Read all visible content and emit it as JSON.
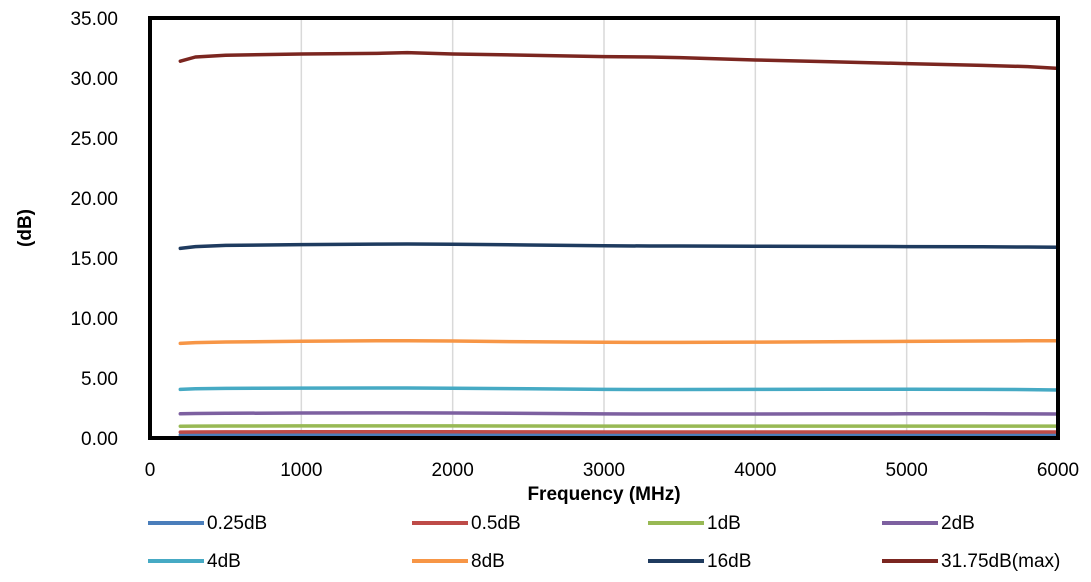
{
  "chart_data": {
    "type": "line",
    "title": "",
    "xlabel": "Frequency (MHz)",
    "ylabel": "(dB)",
    "xlim": [
      0,
      6000
    ],
    "ylim": [
      0,
      35
    ],
    "xticks": [
      0,
      1000,
      2000,
      3000,
      4000,
      5000,
      6000
    ],
    "xtick_labels": [
      "0",
      "1000",
      "2000",
      "3000",
      "4000",
      "5000",
      "6000"
    ],
    "yticks": [
      0,
      5,
      10,
      15,
      20,
      25,
      30,
      35
    ],
    "ytick_labels": [
      "0.00",
      "5.00",
      "10.00",
      "15.00",
      "20.00",
      "25.00",
      "30.00",
      "35.00"
    ],
    "grid": "vertical",
    "legend_position": "bottom",
    "x": [
      200,
      300,
      500,
      1000,
      1500,
      1700,
      2000,
      2500,
      3000,
      3300,
      3500,
      4000,
      4500,
      5000,
      5500,
      5800,
      6000
    ],
    "series": [
      {
        "name": "0.25dB",
        "color": "#4A7EBB",
        "values": [
          0.25,
          0.26,
          0.26,
          0.27,
          0.27,
          0.27,
          0.27,
          0.26,
          0.26,
          0.26,
          0.26,
          0.26,
          0.26,
          0.26,
          0.26,
          0.26,
          0.26
        ]
      },
      {
        "name": "0.5dB",
        "color": "#BE4B48",
        "values": [
          0.49,
          0.5,
          0.51,
          0.52,
          0.52,
          0.52,
          0.52,
          0.51,
          0.5,
          0.5,
          0.5,
          0.5,
          0.5,
          0.5,
          0.5,
          0.5,
          0.5
        ]
      },
      {
        "name": "1dB",
        "color": "#98B954",
        "values": [
          0.98,
          0.99,
          1.0,
          1.01,
          1.01,
          1.01,
          1.01,
          1.0,
          0.99,
          0.99,
          0.99,
          0.99,
          0.99,
          0.99,
          0.99,
          0.99,
          0.99
        ]
      },
      {
        "name": "2dB",
        "color": "#7D60A0",
        "values": [
          2.02,
          2.04,
          2.06,
          2.08,
          2.09,
          2.09,
          2.08,
          2.05,
          2.01,
          2.0,
          2.0,
          2.0,
          2.01,
          2.02,
          2.02,
          2.01,
          2.0
        ]
      },
      {
        "name": "4dB",
        "color": "#46AAC4",
        "values": [
          4.05,
          4.1,
          4.13,
          4.16,
          4.17,
          4.17,
          4.15,
          4.1,
          4.05,
          4.04,
          4.04,
          4.05,
          4.06,
          4.06,
          4.05,
          4.03,
          4.0
        ]
      },
      {
        "name": "8dB",
        "color": "#F79646",
        "values": [
          7.88,
          7.95,
          8.0,
          8.06,
          8.1,
          8.1,
          8.08,
          8.02,
          7.98,
          7.97,
          7.97,
          7.99,
          8.02,
          8.05,
          8.08,
          8.1,
          8.1
        ]
      },
      {
        "name": "16dB",
        "color": "#1F3B5F",
        "values": [
          15.8,
          15.95,
          16.05,
          16.12,
          16.16,
          16.17,
          16.15,
          16.08,
          16.02,
          16.0,
          16.0,
          15.98,
          15.97,
          15.95,
          15.93,
          15.92,
          15.9
        ]
      },
      {
        "name": "31.75dB(max)",
        "color": "#7B2620",
        "values": [
          31.4,
          31.75,
          31.9,
          32.0,
          32.05,
          32.12,
          32.0,
          31.9,
          31.78,
          31.75,
          31.7,
          31.5,
          31.35,
          31.2,
          31.05,
          30.95,
          30.8
        ]
      }
    ]
  }
}
